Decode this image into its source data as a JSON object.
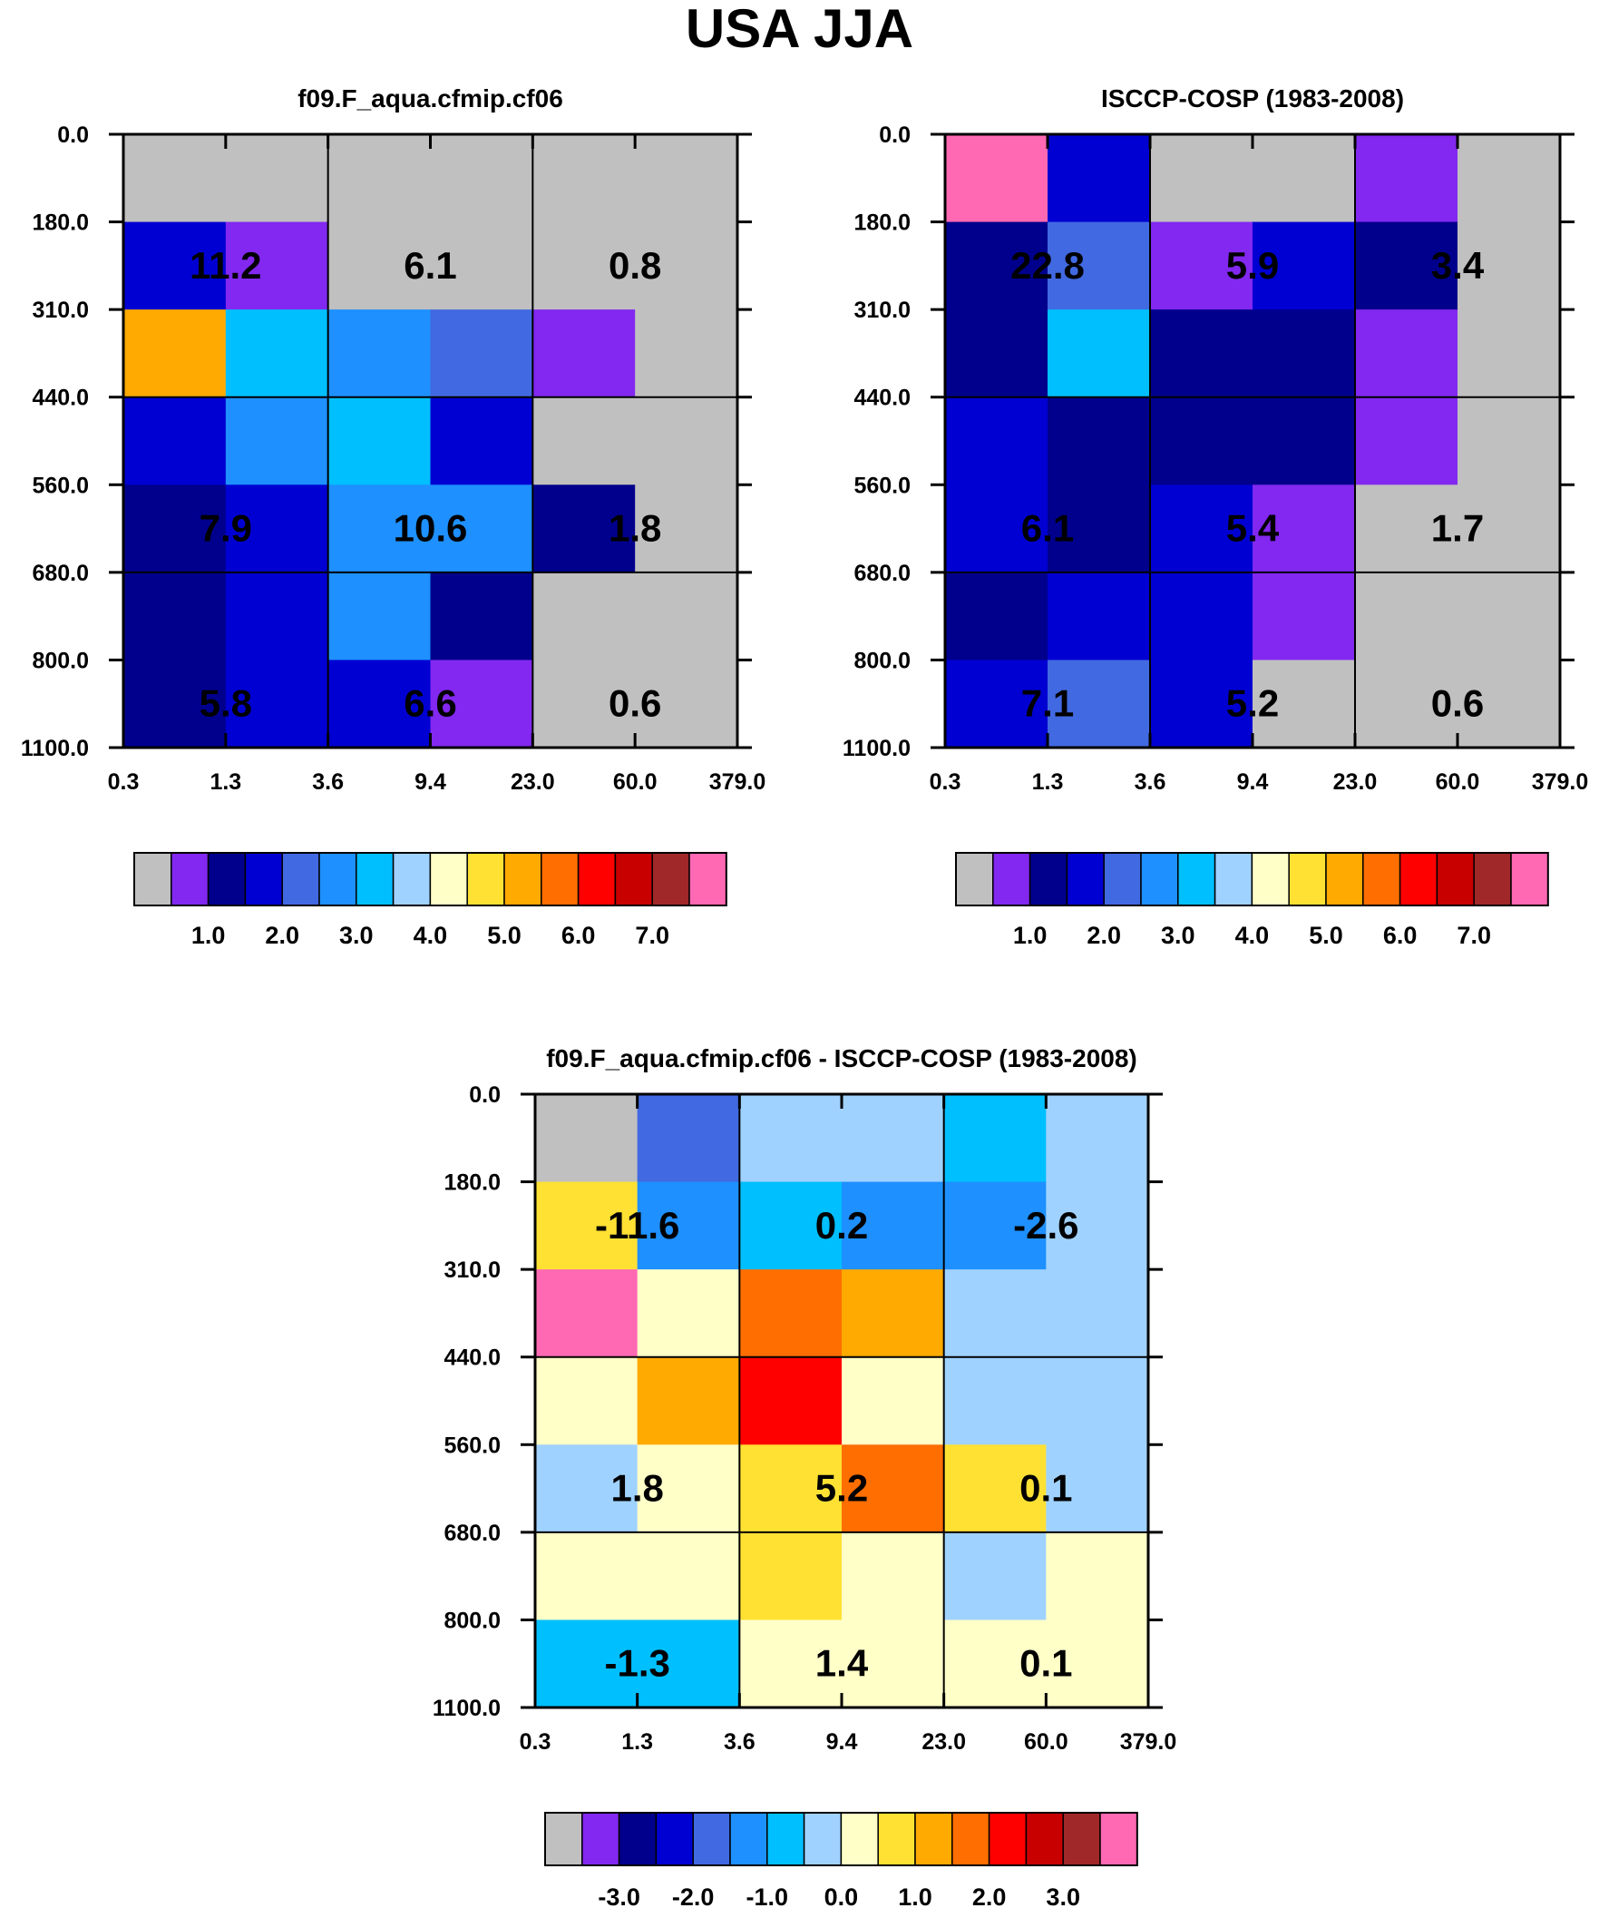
{
  "title": "USA JJA",
  "axes": {
    "x_ticks": [
      "0.3",
      "1.3",
      "3.6",
      "9.4",
      "23.0",
      "60.0",
      "379.0"
    ],
    "y_ticks": [
      "0.0",
      "180.0",
      "310.0",
      "440.0",
      "560.0",
      "680.0",
      "800.0",
      "1100.0"
    ]
  },
  "colors": {
    "palette": [
      "#c0c0c0",
      "#8228f0",
      "#00008c",
      "#0000d2",
      "#4169e1",
      "#1e90ff",
      "#00bfff",
      "#a0d2ff",
      "#ffffc8",
      "#ffe133",
      "#ffaa00",
      "#ff6e00",
      "#ff0000",
      "#c80000",
      "#a02828",
      "#ff69b4"
    ],
    "missing": "#c0c0c0"
  },
  "chart_data": [
    {
      "type": "heatmap",
      "title": "f09.F_aqua.cfmip.cf06",
      "x_edges": [
        "0.3",
        "1.3",
        "3.6",
        "9.4",
        "23.0",
        "60.0",
        "379.0"
      ],
      "y_edges": [
        "0.0",
        "180.0",
        "310.0",
        "440.0",
        "560.0",
        "680.0",
        "800.0",
        "1100.0"
      ],
      "color_index_grid_top_to_bottom": [
        [
          0,
          0,
          0,
          0,
          0,
          0
        ],
        [
          3,
          1,
          0,
          0,
          0,
          0
        ],
        [
          10,
          6,
          5,
          4,
          1,
          0
        ],
        [
          3,
          5,
          6,
          3,
          0,
          0
        ],
        [
          2,
          3,
          5,
          5,
          2,
          0
        ],
        [
          2,
          3,
          5,
          2,
          0,
          0
        ],
        [
          2,
          3,
          3,
          1,
          0,
          0
        ]
      ],
      "group_totals": [
        {
          "label": "11.2",
          "col": 1,
          "row": 1
        },
        {
          "label": "6.1",
          "col": 3,
          "row": 1
        },
        {
          "label": "0.8",
          "col": 5,
          "row": 1
        },
        {
          "label": "7.9",
          "col": 1,
          "row": 4
        },
        {
          "label": "10.6",
          "col": 3,
          "row": 4
        },
        {
          "label": "1.8",
          "col": 5,
          "row": 4
        },
        {
          "label": "5.8",
          "col": 1,
          "row": 6
        },
        {
          "label": "6.6",
          "col": 3,
          "row": 6
        },
        {
          "label": "0.6",
          "col": 5,
          "row": 6
        }
      ],
      "colorbar": {
        "colors": [
          "#c0c0c0",
          "#8228f0",
          "#00008c",
          "#0000d2",
          "#4169e1",
          "#1e90ff",
          "#00bfff",
          "#a0d2ff",
          "#ffffc8",
          "#ffe133",
          "#ffaa00",
          "#ff6e00",
          "#ff0000",
          "#c80000",
          "#a02828",
          "#ff69b4"
        ],
        "labels": [
          "1.0",
          "2.0",
          "3.0",
          "4.0",
          "5.0",
          "6.0",
          "7.0"
        ]
      }
    },
    {
      "type": "heatmap",
      "title": "ISCCP-COSP (1983-2008)",
      "x_edges": [
        "0.3",
        "1.3",
        "3.6",
        "9.4",
        "23.0",
        "60.0",
        "379.0"
      ],
      "y_edges": [
        "0.0",
        "180.0",
        "310.0",
        "440.0",
        "560.0",
        "680.0",
        "800.0",
        "1100.0"
      ],
      "color_index_grid_top_to_bottom": [
        [
          15,
          3,
          0,
          0,
          1,
          0
        ],
        [
          2,
          4,
          1,
          3,
          2,
          0
        ],
        [
          2,
          6,
          2,
          2,
          1,
          0
        ],
        [
          3,
          2,
          2,
          2,
          1,
          0
        ],
        [
          3,
          2,
          3,
          1,
          0,
          0
        ],
        [
          2,
          3,
          3,
          1,
          0,
          0
        ],
        [
          3,
          4,
          3,
          0,
          0,
          0
        ]
      ],
      "group_totals": [
        {
          "label": "22.8",
          "col": 1,
          "row": 1
        },
        {
          "label": "5.9",
          "col": 3,
          "row": 1
        },
        {
          "label": "3.4",
          "col": 5,
          "row": 1
        },
        {
          "label": "6.1",
          "col": 1,
          "row": 4
        },
        {
          "label": "5.4",
          "col": 3,
          "row": 4
        },
        {
          "label": "1.7",
          "col": 5,
          "row": 4
        },
        {
          "label": "7.1",
          "col": 1,
          "row": 6
        },
        {
          "label": "5.2",
          "col": 3,
          "row": 6
        },
        {
          "label": "0.6",
          "col": 5,
          "row": 6
        }
      ],
      "colorbar": {
        "colors": [
          "#c0c0c0",
          "#8228f0",
          "#00008c",
          "#0000d2",
          "#4169e1",
          "#1e90ff",
          "#00bfff",
          "#a0d2ff",
          "#ffffc8",
          "#ffe133",
          "#ffaa00",
          "#ff6e00",
          "#ff0000",
          "#c80000",
          "#a02828",
          "#ff69b4"
        ],
        "labels": [
          "1.0",
          "2.0",
          "3.0",
          "4.0",
          "5.0",
          "6.0",
          "7.0"
        ]
      }
    },
    {
      "type": "heatmap",
      "title": "f09.F_aqua.cfmip.cf06 - ISCCP-COSP (1983-2008)",
      "x_edges": [
        "0.3",
        "1.3",
        "3.6",
        "9.4",
        "23.0",
        "60.0",
        "379.0"
      ],
      "y_edges": [
        "0.0",
        "180.0",
        "310.0",
        "440.0",
        "560.0",
        "680.0",
        "800.0",
        "1100.0"
      ],
      "color_index_grid_top_to_bottom": [
        [
          0,
          4,
          7,
          7,
          6,
          7
        ],
        [
          9,
          5,
          6,
          5,
          5,
          7
        ],
        [
          15,
          8,
          11,
          10,
          7,
          7
        ],
        [
          8,
          10,
          12,
          8,
          7,
          7
        ],
        [
          7,
          8,
          9,
          11,
          9,
          7
        ],
        [
          8,
          8,
          9,
          8,
          7,
          8
        ],
        [
          6,
          6,
          8,
          8,
          8,
          8
        ]
      ],
      "group_totals": [
        {
          "label": "-11.6",
          "col": 1,
          "row": 1
        },
        {
          "label": "0.2",
          "col": 3,
          "row": 1
        },
        {
          "label": "-2.6",
          "col": 5,
          "row": 1
        },
        {
          "label": "1.8",
          "col": 1,
          "row": 4
        },
        {
          "label": "5.2",
          "col": 3,
          "row": 4
        },
        {
          "label": "0.1",
          "col": 5,
          "row": 4
        },
        {
          "label": "-1.3",
          "col": 1,
          "row": 6
        },
        {
          "label": "1.4",
          "col": 3,
          "row": 6
        },
        {
          "label": "0.1",
          "col": 5,
          "row": 6
        }
      ],
      "colorbar": {
        "colors": [
          "#c0c0c0",
          "#8228f0",
          "#00008c",
          "#0000d2",
          "#4169e1",
          "#1e90ff",
          "#00bfff",
          "#a0d2ff",
          "#ffffc8",
          "#ffe133",
          "#ffaa00",
          "#ff6e00",
          "#ff0000",
          "#c80000",
          "#a02828",
          "#ff69b4"
        ],
        "labels": [
          "-3.0",
          "-2.0",
          "-1.0",
          "0.0",
          "1.0",
          "2.0",
          "3.0"
        ]
      }
    }
  ]
}
